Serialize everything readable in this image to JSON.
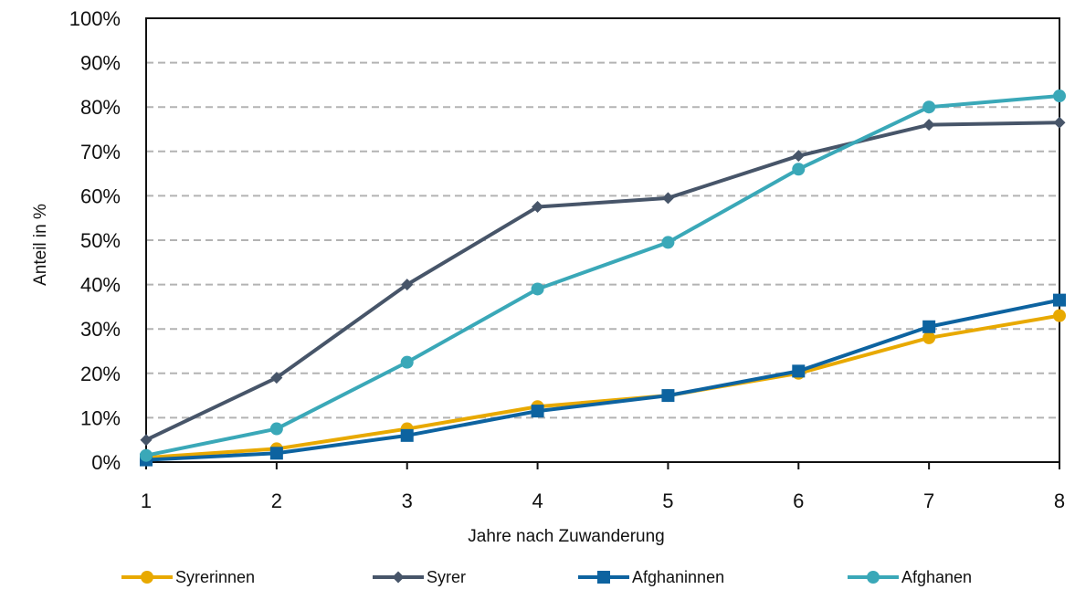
{
  "chart_data": {
    "type": "line",
    "title": "",
    "xlabel": "Jahre nach Zuwanderung",
    "ylabel": "Anteil in %",
    "x": [
      1,
      2,
      3,
      4,
      5,
      6,
      7,
      8
    ],
    "x_tick_labels": [
      "1",
      "2",
      "3",
      "4",
      "5",
      "6",
      "7",
      "8"
    ],
    "y_tick_labels": [
      "0%",
      "10%",
      "20%",
      "30%",
      "40%",
      "50%",
      "60%",
      "70%",
      "80%",
      "90%",
      "100%"
    ],
    "ylim": [
      0,
      100
    ],
    "y_unit": "%",
    "grid": "horizontal dashed",
    "legend_position": "bottom",
    "series": [
      {
        "name": "Syrerinnen",
        "color": "#e8a900",
        "marker": "circle",
        "values": [
          1,
          3,
          7.5,
          12.5,
          15,
          20,
          28,
          33
        ]
      },
      {
        "name": "Syrer",
        "color": "#475569",
        "marker": "diamond",
        "values": [
          5,
          19,
          40,
          57.5,
          59.5,
          69,
          76,
          76.5
        ]
      },
      {
        "name": "Afghaninnen",
        "color": "#0d63a0",
        "marker": "square",
        "values": [
          0.5,
          2,
          6,
          11.5,
          15,
          20.5,
          30.5,
          36.5
        ]
      },
      {
        "name": "Afghanen",
        "color": "#3aa8b8",
        "marker": "circle",
        "values": [
          1.5,
          7.5,
          22.5,
          39,
          49.5,
          66,
          80,
          82.5
        ]
      }
    ]
  }
}
